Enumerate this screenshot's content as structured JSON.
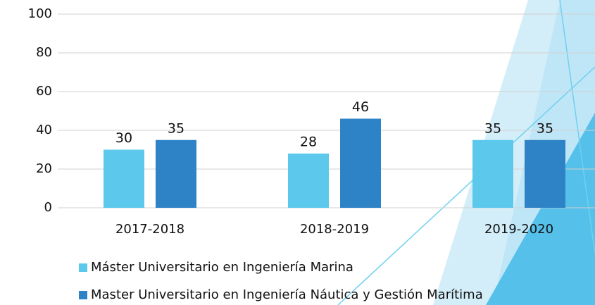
{
  "chart_data": {
    "type": "bar",
    "categories": [
      "2017-2018",
      "2018-2019",
      "2019-2020"
    ],
    "series": [
      {
        "name": "Máster Universitario en Ingeniería Marina",
        "color": "#5bc8ec",
        "values": [
          30,
          28,
          35
        ]
      },
      {
        "name": "Master Universitario en Ingeniería Náutica y Gestión Marítima",
        "color": "#2e83c7",
        "values": [
          35,
          46,
          35
        ]
      }
    ],
    "ylim": [
      0,
      100
    ],
    "yticks": [
      0,
      20,
      40,
      60,
      80,
      100
    ],
    "grid": true,
    "legend": "bottom"
  }
}
